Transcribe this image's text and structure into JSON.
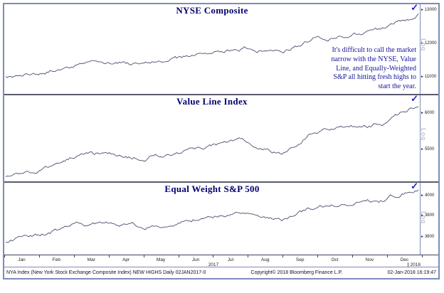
{
  "icons": {
    "check": "✓",
    "axis_arrow": "►"
  },
  "colors": {
    "frame_border": "#7b8cba",
    "panel_divider": "#5a5a6e",
    "series_line": "#4e4e70",
    "title_navy": "#00006f",
    "annotation_navy": "#16169c",
    "checkmark_blue": "#2222cc",
    "log_gray": "#a9a9b4"
  },
  "panels": [
    {
      "title": "NYSE Composite",
      "log_label": "Log",
      "log_top_pct": 38,
      "yticks": [
        {
          "label": "13000",
          "top_pct": 6
        },
        {
          "label": "12000",
          "top_pct": 44
        },
        {
          "label": "11000",
          "top_pct": 81
        }
      ]
    },
    {
      "title": "Value Line Index",
      "log_label": "Log",
      "log_top_pct": 38,
      "yticks": [
        {
          "label": "6000",
          "top_pct": 21
        },
        {
          "label": "5500",
          "top_pct": 63
        }
      ]
    },
    {
      "title": "Equal Weight S&P 500",
      "log_label": "Log",
      "log_top_pct": 40,
      "yticks": [
        {
          "label": "4000",
          "top_pct": 18
        },
        {
          "label": "3800",
          "top_pct": 46
        },
        {
          "label": "3600",
          "top_pct": 75
        }
      ]
    }
  ],
  "annotation": {
    "lines": [
      "It's difficult to call the market",
      "narrow with the NYSE, Value",
      "Line, and Equally-Weighted",
      "S&P all hitting fresh highs to",
      "start the year."
    ]
  },
  "x_axis": {
    "months": [
      "Jan",
      "Feb",
      "Mar",
      "Apr",
      "May",
      "Jun",
      "Jul",
      "Aug",
      "Sep",
      "Oct",
      "Nov",
      "Dec"
    ],
    "year_left": "2017",
    "year_right": "2018"
  },
  "footer": {
    "left": "NYA Index (New York Stock Exchange Composite Index) NEW HIGHS  Daily 02JAN2017-0",
    "center": "Copyright© 2018 Bloomberg Finance L.P.",
    "right": "02-Jan-2018 16:19:47"
  },
  "chart_data": [
    {
      "type": "line",
      "title": "NYSE Composite",
      "x_unit": "months of 2017, daily data",
      "categories": [
        "Jan",
        "Feb",
        "Mar",
        "Apr",
        "May",
        "Jun",
        "Jul",
        "Aug",
        "Sep",
        "Oct",
        "Nov",
        "Dec"
      ],
      "start_value": 11050,
      "month_end_values": [
        11120,
        11420,
        11490,
        11440,
        11590,
        11760,
        11940,
        11790,
        12180,
        12320,
        12480,
        12920
      ],
      "yticks": [
        11000,
        12000,
        13000
      ],
      "ylim": [
        10550,
        13215
      ],
      "scale": "log",
      "grid": false,
      "legend": false
    },
    {
      "type": "line",
      "title": "Value Line Index",
      "x_unit": "months of 2017, daily data",
      "categories": [
        "Jan",
        "Feb",
        "Mar",
        "Apr",
        "May",
        "Jun",
        "Jul",
        "Aug",
        "Sep",
        "Oct",
        "Nov",
        "Dec"
      ],
      "start_value": 5110,
      "month_end_values": [
        5210,
        5420,
        5440,
        5390,
        5450,
        5560,
        5610,
        5440,
        5770,
        5820,
        5840,
        6130
      ],
      "yticks": [
        5500,
        6000
      ],
      "ylim": [
        5060,
        6250
      ],
      "scale": "log",
      "grid": false,
      "legend": false
    },
    {
      "type": "line",
      "title": "Equal Weight S&P 500",
      "x_unit": "months of 2017, daily data",
      "categories": [
        "Jan",
        "Feb",
        "Mar",
        "Apr",
        "May",
        "Jun",
        "Jul",
        "Aug",
        "Sep",
        "Oct",
        "Nov",
        "Dec"
      ],
      "start_value": 3560,
      "month_end_values": [
        3610,
        3720,
        3730,
        3700,
        3730,
        3800,
        3830,
        3760,
        3890,
        3930,
        3960,
        4090
      ],
      "yticks": [
        3600,
        3800,
        4000
      ],
      "ylim": [
        3424,
        4126
      ],
      "scale": "log",
      "grid": false,
      "legend": false
    }
  ]
}
